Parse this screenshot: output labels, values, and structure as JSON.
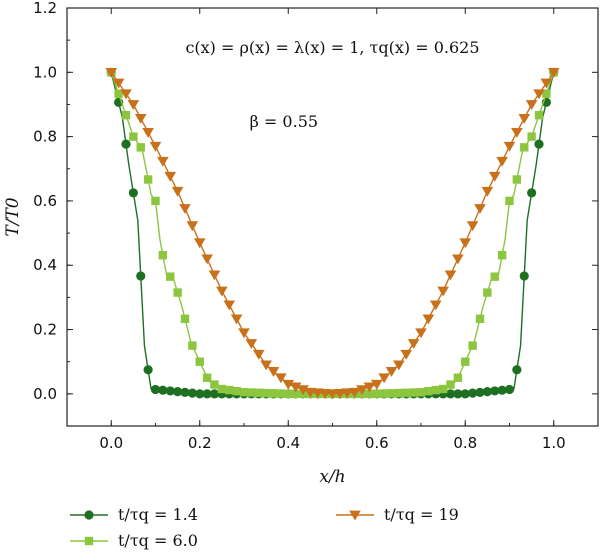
{
  "chart_data": {
    "type": "line",
    "xlabel": "x/h",
    "ylabel": "T/T0",
    "xlim": [
      -0.1,
      1.1
    ],
    "ylim": [
      -0.1,
      1.2
    ],
    "xticks": [
      "0.0",
      "0.2",
      "0.4",
      "0.6",
      "0.8",
      "1.0"
    ],
    "yticks": [
      "0.0",
      "0.2",
      "0.4",
      "0.6",
      "0.8",
      "1.0",
      "1.2"
    ],
    "annotations": [
      "c(x) = ρ(x) = λ(x) = 1, τq(x) = 0.625",
      "β = 0.55"
    ],
    "grid": false,
    "legend_position": "bottom",
    "series": [
      {
        "name": "t/τq = 1.4",
        "marker": "circle",
        "color": "#1e6f22",
        "x": [
          0.0,
          0.025,
          0.04,
          0.06,
          0.075,
          0.09,
          0.2,
          0.4,
          0.5,
          0.6,
          0.8,
          0.91,
          0.925,
          0.94,
          0.96,
          0.975,
          1.0
        ],
        "y": [
          1.0,
          0.86,
          0.71,
          0.54,
          0.15,
          0.015,
          0.0,
          0.0,
          0.0,
          0.0,
          0.0,
          0.015,
          0.15,
          0.54,
          0.71,
          0.86,
          1.0
        ]
      },
      {
        "name": "t/τq = 6.0",
        "marker": "square",
        "color": "#8cc63f",
        "x": [
          0.0,
          0.025,
          0.05,
          0.07,
          0.09,
          0.1,
          0.11,
          0.125,
          0.14,
          0.16,
          0.18,
          0.2,
          0.22,
          0.25,
          0.3,
          0.4,
          0.5,
          0.6,
          0.7,
          0.75,
          0.78,
          0.8,
          0.82,
          0.84,
          0.86,
          0.875,
          0.89,
          0.9,
          0.91,
          0.93,
          0.95,
          0.975,
          1.0
        ],
        "y": [
          1.0,
          0.9,
          0.8,
          0.76,
          0.62,
          0.6,
          0.48,
          0.37,
          0.36,
          0.27,
          0.16,
          0.1,
          0.04,
          0.015,
          0.005,
          0.0,
          0.0,
          0.0,
          0.005,
          0.015,
          0.04,
          0.1,
          0.16,
          0.27,
          0.36,
          0.37,
          0.48,
          0.6,
          0.62,
          0.76,
          0.8,
          0.9,
          1.0
        ]
      },
      {
        "name": "t/τq = 19",
        "marker": "triangle-down",
        "color": "#c8701a",
        "x": [
          0.0,
          0.05,
          0.1,
          0.15,
          0.2,
          0.25,
          0.3,
          0.35,
          0.4,
          0.45,
          0.5,
          0.55,
          0.6,
          0.65,
          0.7,
          0.75,
          0.8,
          0.85,
          0.9,
          0.95,
          1.0
        ],
        "y": [
          1.0,
          0.9,
          0.77,
          0.63,
          0.47,
          0.32,
          0.19,
          0.09,
          0.03,
          0.005,
          0.0,
          0.005,
          0.03,
          0.09,
          0.19,
          0.32,
          0.47,
          0.63,
          0.77,
          0.9,
          1.0
        ]
      }
    ]
  }
}
